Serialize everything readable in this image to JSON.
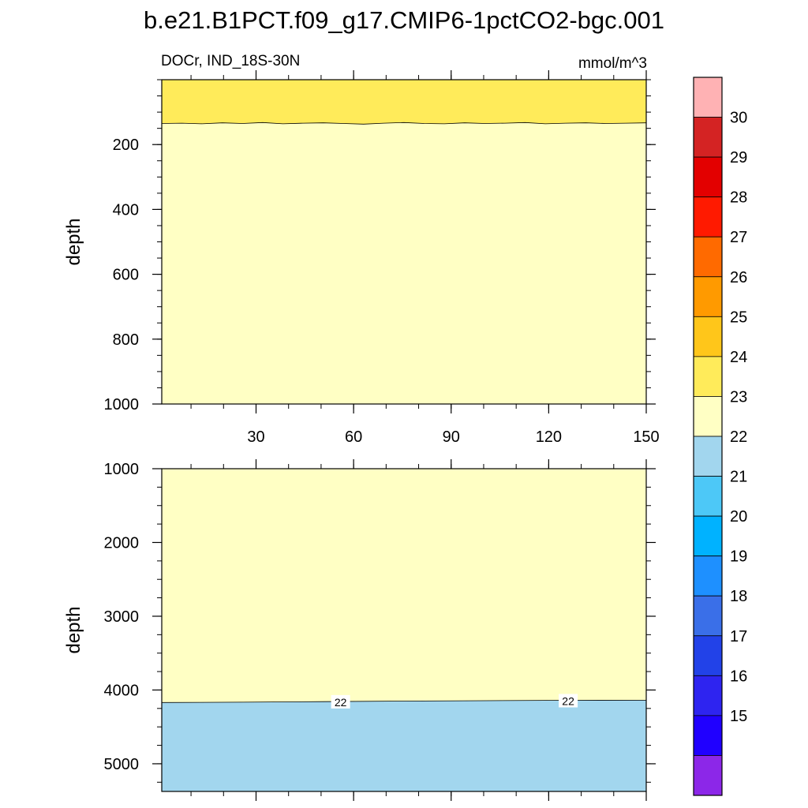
{
  "title": "b.e21.B1PCT.f09_g17.CMIP6-1pctCO2-bgc.001",
  "subtitle_left": "DOCr, IND_18S-30N",
  "units": "mmol/m^3",
  "colorbar": {
    "labels": [
      "30",
      "29",
      "28",
      "27",
      "26",
      "25",
      "24",
      "23",
      "22",
      "21",
      "20",
      "19",
      "18",
      "17",
      "16",
      "15"
    ],
    "colors": [
      "#FFB2B4",
      "#D42323",
      "#E30000",
      "#FF1A00",
      "#FF6A00",
      "#FF9A00",
      "#FFC61A",
      "#FFEB5A",
      "#FFFFC4",
      "#A2D6EE",
      "#4DC8F7",
      "#00B2FF",
      "#1E90FF",
      "#3A6FE8",
      "#2242E8",
      "#2E24F0",
      "#2000FF",
      "#8C27E8"
    ]
  },
  "chart_data": [
    {
      "type": "heatmap",
      "panel": "top",
      "xlabel": "",
      "ylabel": "depth",
      "x_ticks": [
        "30",
        "60",
        "90",
        "120",
        "150"
      ],
      "y_ticks": [
        "200",
        "400",
        "600",
        "800",
        "1000"
      ],
      "xlim": [
        1,
        150
      ],
      "ylim": [
        0,
        1000
      ],
      "y_reversed": true,
      "regions": [
        {
          "value_range": [
            23,
            24
          ],
          "depth_from": 0,
          "depth_to": 135,
          "color": "#FFEB5A"
        },
        {
          "value_range": [
            22,
            23
          ],
          "depth_from": 135,
          "depth_to": 1000,
          "color": "#FFFFC4"
        }
      ],
      "contour_depth": [
        135,
        134,
        136,
        133,
        135,
        132,
        136,
        134,
        133,
        135,
        137,
        134,
        132,
        135,
        136,
        133,
        135,
        134,
        132,
        136,
        134,
        133,
        135,
        134,
        133
      ]
    },
    {
      "type": "heatmap",
      "panel": "bottom",
      "xlabel": "",
      "ylabel": "depth",
      "x_ticks": [
        "30",
        "60",
        "90",
        "120",
        "150"
      ],
      "y_ticks": [
        "1000",
        "2000",
        "3000",
        "4000",
        "5000"
      ],
      "xlim": [
        1,
        150
      ],
      "ylim": [
        1000,
        5375
      ],
      "y_reversed": true,
      "regions": [
        {
          "value_range": [
            22,
            23
          ],
          "depth_from": 1000,
          "depth_to": 4170,
          "color": "#FFFFC4"
        },
        {
          "value_range": [
            21,
            22
          ],
          "depth_from": 4170,
          "depth_to": 5375,
          "color": "#A2D6EE"
        }
      ],
      "contour_depth": [
        4170,
        4165,
        4158,
        4150,
        4145,
        4140,
        4138
      ],
      "contour_labels": [
        {
          "text": "22",
          "x": 56,
          "depth": 4165
        },
        {
          "text": "22",
          "x": 126,
          "depth": 4150
        }
      ]
    }
  ]
}
